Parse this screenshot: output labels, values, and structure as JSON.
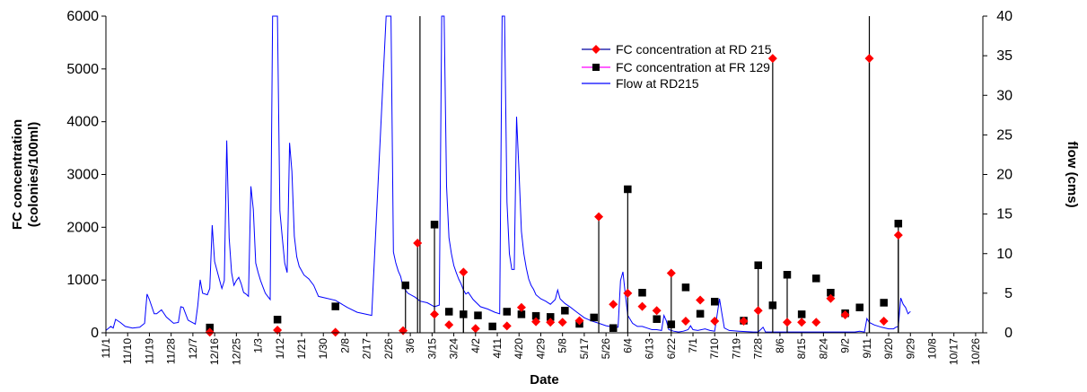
{
  "chart_data": {
    "type": "line",
    "xlabel": "Date",
    "ylabel": "FC concentration\n(colonies/100ml)",
    "y2label": "flow (cms)",
    "ylim": [
      0,
      6000
    ],
    "y2lim": [
      0,
      40
    ],
    "yticks": [
      0,
      1000,
      2000,
      3000,
      4000,
      5000,
      6000
    ],
    "y2ticks": [
      0,
      5,
      10,
      15,
      20,
      25,
      30,
      35,
      40
    ],
    "x_range_days": [
      0,
      363
    ],
    "x_start_date": "11/1",
    "x_tick_step_days": 9,
    "x_ticks": [
      "11/1",
      "11/10",
      "11/19",
      "11/28",
      "12/7",
      "12/16",
      "12/25",
      "1/3",
      "1/12",
      "1/21",
      "1/30",
      "2/8",
      "2/17",
      "2/26",
      "3/6",
      "3/15",
      "3/24",
      "4/2",
      "4/11",
      "4/20",
      "4/29",
      "5/8",
      "5/17",
      "5/26",
      "6/4",
      "6/13",
      "6/22",
      "7/1",
      "7/10",
      "7/19",
      "7/28",
      "8/6",
      "8/15",
      "8/24",
      "9/2",
      "9/11",
      "9/20",
      "9/29",
      "10/8",
      "10/17",
      "10/26"
    ],
    "legend": {
      "position": "top-center",
      "entries": [
        "FC concentration at RD 215",
        "FC concentration at FR 129",
        "Flow at RD215"
      ]
    },
    "colors": {
      "rd215": "#ff0000",
      "fr129": "#000000",
      "flow": "#0000ff",
      "legend_line_rd215": "#0000a0",
      "legend_line_fr129": "#ff00ff"
    },
    "series": [
      {
        "name": "FC concentration at RD 215",
        "axis": "left",
        "marker": "diamond",
        "points": [
          [
            43,
            10
          ],
          [
            71,
            50
          ],
          [
            95,
            10
          ],
          [
            123,
            40
          ],
          [
            129,
            1700
          ],
          [
            136,
            350
          ],
          [
            142,
            150
          ],
          [
            148,
            1150
          ],
          [
            153,
            80
          ],
          [
            166,
            130
          ],
          [
            172,
            480
          ],
          [
            178,
            210
          ],
          [
            184,
            200
          ],
          [
            189,
            200
          ],
          [
            196,
            230
          ],
          [
            204,
            2200
          ],
          [
            210,
            540
          ],
          [
            216,
            750
          ],
          [
            222,
            500
          ],
          [
            228,
            420
          ],
          [
            234,
            1130
          ],
          [
            240,
            220
          ],
          [
            246,
            620
          ],
          [
            252,
            220
          ],
          [
            264,
            220
          ],
          [
            270,
            420
          ],
          [
            276,
            5200
          ],
          [
            282,
            200
          ],
          [
            288,
            200
          ],
          [
            294,
            200
          ],
          [
            300,
            650
          ],
          [
            306,
            340
          ],
          [
            316,
            5200
          ],
          [
            322,
            220
          ],
          [
            328,
            1850
          ]
        ],
        "stems": [
          [
            129,
            1700
          ],
          [
            148,
            1150
          ],
          [
            204,
            2200
          ],
          [
            234,
            1130
          ],
          [
            276,
            5200
          ],
          [
            316,
            5200
          ],
          [
            328,
            1850
          ]
        ]
      },
      {
        "name": "FC concentration at FR 129",
        "axis": "left",
        "marker": "square",
        "points": [
          [
            43,
            100
          ],
          [
            71,
            250
          ],
          [
            95,
            500
          ],
          [
            124,
            900
          ],
          [
            136,
            2050
          ],
          [
            142,
            400
          ],
          [
            148,
            350
          ],
          [
            154,
            330
          ],
          [
            160,
            120
          ],
          [
            166,
            400
          ],
          [
            172,
            350
          ],
          [
            178,
            320
          ],
          [
            184,
            300
          ],
          [
            190,
            420
          ],
          [
            196,
            170
          ],
          [
            202,
            290
          ],
          [
            210,
            90
          ],
          [
            216,
            2720
          ],
          [
            222,
            760
          ],
          [
            228,
            260
          ],
          [
            234,
            160
          ],
          [
            240,
            860
          ],
          [
            246,
            360
          ],
          [
            252,
            590
          ],
          [
            264,
            230
          ],
          [
            270,
            1280
          ],
          [
            276,
            520
          ],
          [
            282,
            1100
          ],
          [
            288,
            350
          ],
          [
            294,
            1030
          ],
          [
            300,
            760
          ],
          [
            306,
            370
          ],
          [
            312,
            480
          ],
          [
            322,
            570
          ],
          [
            328,
            2070
          ]
        ],
        "stems": [
          [
            124,
            900
          ],
          [
            136,
            2050
          ],
          [
            148,
            350
          ],
          [
            216,
            2720
          ],
          [
            270,
            1280
          ],
          [
            282,
            1100
          ],
          [
            328,
            2070
          ]
        ]
      },
      {
        "name": "Flow at RD215",
        "axis": "right",
        "points": [
          [
            0,
            0.3
          ],
          [
            2,
            0.8
          ],
          [
            3,
            0.6
          ],
          [
            4,
            1.7
          ],
          [
            6,
            1.3
          ],
          [
            8,
            0.8
          ],
          [
            11,
            0.6
          ],
          [
            14,
            0.7
          ],
          [
            16,
            1.2
          ],
          [
            17,
            4.9
          ],
          [
            18,
            4.2
          ],
          [
            20,
            2.4
          ],
          [
            21,
            2.4
          ],
          [
            23,
            2.9
          ],
          [
            25,
            2.0
          ],
          [
            28,
            1.2
          ],
          [
            30,
            1.3
          ],
          [
            31,
            3.3
          ],
          [
            32,
            3.2
          ],
          [
            34,
            1.6
          ],
          [
            37,
            1.1
          ],
          [
            38,
            3.4
          ],
          [
            39,
            6.7
          ],
          [
            40,
            5.0
          ],
          [
            42,
            4.8
          ],
          [
            43,
            5.6
          ],
          [
            44,
            13.6
          ],
          [
            45,
            9.0
          ],
          [
            47,
            6.7
          ],
          [
            48,
            5.6
          ],
          [
            49,
            6.6
          ],
          [
            50,
            24.3
          ],
          [
            51,
            12.0
          ],
          [
            52,
            7.6
          ],
          [
            53,
            6.0
          ],
          [
            54,
            6.6
          ],
          [
            55,
            7.0
          ],
          [
            56,
            6.2
          ],
          [
            57,
            5.1
          ],
          [
            58,
            4.9
          ],
          [
            59,
            4.6
          ],
          [
            60,
            18.5
          ],
          [
            61,
            15.6
          ],
          [
            62,
            8.8
          ],
          [
            63,
            7.6
          ],
          [
            64,
            6.6
          ],
          [
            65,
            5.8
          ],
          [
            66,
            5.0
          ],
          [
            67,
            4.6
          ],
          [
            68,
            4.2
          ],
          [
            69,
            40
          ],
          [
            70,
            40
          ],
          [
            71,
            40
          ],
          [
            72,
            15.4
          ],
          [
            73,
            12.0
          ],
          [
            74,
            8.8
          ],
          [
            75,
            7.6
          ],
          [
            76,
            24.0
          ],
          [
            77,
            20.4
          ],
          [
            78,
            12.2
          ],
          [
            79,
            9.6
          ],
          [
            80,
            8.4
          ],
          [
            82,
            7.3
          ],
          [
            84,
            6.8
          ],
          [
            86,
            6.0
          ],
          [
            88,
            4.6
          ],
          [
            95,
            4.1
          ],
          [
            100,
            3.2
          ],
          [
            104,
            2.6
          ],
          [
            110,
            2.2
          ],
          [
            116,
            40
          ],
          [
            117,
            40
          ],
          [
            118,
            40
          ],
          [
            119,
            10.2
          ],
          [
            120,
            8.8
          ],
          [
            121,
            7.8
          ],
          [
            122,
            7.1
          ],
          [
            123,
            5.8
          ],
          [
            125,
            5.0
          ],
          [
            128,
            4.5
          ],
          [
            130,
            4.0
          ],
          [
            133,
            3.8
          ],
          [
            136,
            3.3
          ],
          [
            138,
            3.5
          ],
          [
            139,
            40
          ],
          [
            140,
            40
          ],
          [
            141,
            18.5
          ],
          [
            142,
            12.0
          ],
          [
            143,
            10.0
          ],
          [
            144,
            8.5
          ],
          [
            145,
            7.6
          ],
          [
            146,
            6.8
          ],
          [
            147,
            6.2
          ],
          [
            148,
            5.4
          ],
          [
            149,
            4.9
          ],
          [
            150,
            5.1
          ],
          [
            152,
            4.2
          ],
          [
            155,
            3.3
          ],
          [
            158,
            3.0
          ],
          [
            161,
            2.6
          ],
          [
            163,
            2.4
          ],
          [
            164,
            40
          ],
          [
            165,
            40
          ],
          [
            166,
            16.5
          ],
          [
            167,
            10.0
          ],
          [
            168,
            8.0
          ],
          [
            169,
            8.0
          ],
          [
            170,
            27.3
          ],
          [
            171,
            20.4
          ],
          [
            172,
            12.8
          ],
          [
            173,
            10.0
          ],
          [
            174,
            8.2
          ],
          [
            175,
            6.8
          ],
          [
            176,
            6.0
          ],
          [
            177,
            5.5
          ],
          [
            178,
            4.8
          ],
          [
            180,
            4.3
          ],
          [
            182,
            4.0
          ],
          [
            184,
            3.6
          ],
          [
            186,
            4.2
          ],
          [
            187,
            5.4
          ],
          [
            188,
            4.3
          ],
          [
            190,
            3.7
          ],
          [
            192,
            3.3
          ],
          [
            195,
            2.6
          ],
          [
            198,
            1.9
          ],
          [
            201,
            1.5
          ],
          [
            204,
            1.2
          ],
          [
            207,
            0.9
          ],
          [
            210,
            0.7
          ],
          [
            212,
            0.7
          ],
          [
            213,
            6.6
          ],
          [
            214,
            7.7
          ],
          [
            215,
            4.8
          ],
          [
            216,
            2.2
          ],
          [
            218,
            1.2
          ],
          [
            220,
            0.8
          ],
          [
            222,
            0.8
          ],
          [
            224,
            0.6
          ],
          [
            226,
            0.4
          ],
          [
            228,
            0.4
          ],
          [
            230,
            0.3
          ],
          [
            231,
            2.2
          ],
          [
            232,
            1.5
          ],
          [
            233,
            0.4
          ],
          [
            235,
            0.2
          ],
          [
            237,
            0.1
          ],
          [
            239,
            0.2
          ],
          [
            241,
            0.4
          ],
          [
            242,
            0.9
          ],
          [
            243,
            0.4
          ],
          [
            245,
            0.3
          ],
          [
            248,
            0.5
          ],
          [
            250,
            0.3
          ],
          [
            252,
            0.2
          ],
          [
            254,
            4.3
          ],
          [
            255,
            2.4
          ],
          [
            256,
            0.6
          ],
          [
            258,
            0.3
          ],
          [
            262,
            0.2
          ],
          [
            268,
            0.1
          ],
          [
            270,
            0.1
          ],
          [
            272,
            0.7
          ],
          [
            273,
            0.1
          ],
          [
            280,
            0.1
          ],
          [
            290,
            0.1
          ],
          [
            300,
            0.1
          ],
          [
            310,
            0.1
          ],
          [
            312,
            0.2
          ],
          [
            314,
            0.1
          ],
          [
            315,
            1.8
          ],
          [
            316,
            1.3
          ],
          [
            318,
            1.0
          ],
          [
            321,
            0.7
          ],
          [
            324,
            0.5
          ],
          [
            326,
            0.5
          ],
          [
            327,
            0.7
          ],
          [
            328,
            0.8
          ],
          [
            329,
            4.4
          ],
          [
            330,
            3.6
          ],
          [
            331,
            3.2
          ],
          [
            332,
            2.4
          ],
          [
            333,
            2.7
          ]
        ]
      }
    ],
    "vertical_lines_days": [
      130,
      316
    ]
  }
}
